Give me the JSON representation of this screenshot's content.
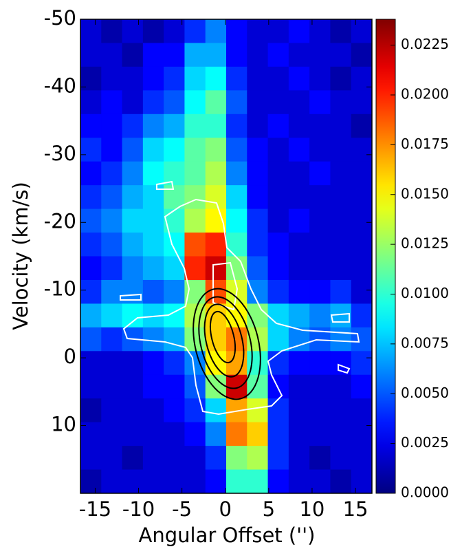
{
  "chart_data": {
    "type": "heatmap",
    "x_label": "Angular Offset ('')",
    "y_label": "Velocity (km/s)",
    "colormap": "jet",
    "xlim": [
      -16.7,
      16.9
    ],
    "ylim": [
      20,
      -50
    ],
    "xticks": [
      -15,
      -10,
      -5,
      0,
      5,
      10,
      15
    ],
    "yticks": [
      -50,
      -40,
      -30,
      -20,
      -10,
      0,
      10
    ],
    "clim": [
      0,
      0.0238
    ],
    "cticks": [
      {
        "value": 0,
        "label": "0.0000"
      },
      {
        "value": 0.0025,
        "label": "0.0025"
      },
      {
        "value": 0.005,
        "label": "0.0050"
      },
      {
        "value": 0.0075,
        "label": "0.0075"
      },
      {
        "value": 0.01,
        "label": "0.0100"
      },
      {
        "value": 0.0125,
        "label": "0.0125"
      },
      {
        "value": 0.015,
        "label": "0.0150"
      },
      {
        "value": 0.0175,
        "label": "0.0175"
      },
      {
        "value": 0.02,
        "label": "0.0200"
      },
      {
        "value": 0.0225,
        "label": "0.0225"
      }
    ],
    "x": [
      -15.5,
      -13.1,
      -10.7,
      -8.3,
      -5.9,
      -3.5,
      -1.1,
      1.3,
      3.7,
      6.1,
      8.5,
      10.9,
      13.3,
      15.7
    ],
    "y": [
      -48.25,
      -44.75,
      -41.25,
      -37.75,
      -34.25,
      -30.75,
      -27.25,
      -23.75,
      -20.25,
      -16.75,
      -13.25,
      -9.75,
      -6.25,
      -2.75,
      0.75,
      4.25,
      7.75,
      11.25,
      14.75,
      18.25
    ],
    "z": [
      [
        0.002,
        0.001,
        0.002,
        0.001,
        0.002,
        0.004,
        0.006,
        0.003,
        0.002,
        0.002,
        0.003,
        0.002,
        0.001,
        0.002
      ],
      [
        0.002,
        0.002,
        0.001,
        0.003,
        0.003,
        0.007,
        0.007,
        0.003,
        0.002,
        0.003,
        0.002,
        0.002,
        0.002,
        0.001
      ],
      [
        0.001,
        0.002,
        0.002,
        0.003,
        0.004,
        0.008,
        0.009,
        0.004,
        0.002,
        0.002,
        0.003,
        0.002,
        0.001,
        0.002
      ],
      [
        0.002,
        0.003,
        0.002,
        0.004,
        0.005,
        0.009,
        0.011,
        0.005,
        0.002,
        0.002,
        0.002,
        0.003,
        0.002,
        0.002
      ],
      [
        0.003,
        0.003,
        0.004,
        0.006,
        0.007,
        0.01,
        0.01,
        0.004,
        0.002,
        0.003,
        0.002,
        0.002,
        0.002,
        0.001
      ],
      [
        0.004,
        0.003,
        0.005,
        0.008,
        0.009,
        0.011,
        0.012,
        0.005,
        0.003,
        0.002,
        0.003,
        0.002,
        0.002,
        0.002
      ],
      [
        0.003,
        0.004,
        0.006,
        0.009,
        0.01,
        0.011,
        0.013,
        0.006,
        0.003,
        0.002,
        0.002,
        0.003,
        0.002,
        0.002
      ],
      [
        0.004,
        0.005,
        0.007,
        0.008,
        0.011,
        0.012,
        0.014,
        0.008,
        0.003,
        0.002,
        0.002,
        0.002,
        0.002,
        0.002
      ],
      [
        0.005,
        0.006,
        0.008,
        0.008,
        0.01,
        0.013,
        0.015,
        0.009,
        0.004,
        0.002,
        0.003,
        0.002,
        0.002,
        0.002
      ],
      [
        0.004,
        0.005,
        0.007,
        0.008,
        0.009,
        0.019,
        0.02,
        0.01,
        0.004,
        0.003,
        0.002,
        0.002,
        0.002,
        0.002
      ],
      [
        0.003,
        0.004,
        0.006,
        0.007,
        0.008,
        0.02,
        0.022,
        0.012,
        0.005,
        0.003,
        0.002,
        0.002,
        0.002,
        0.002
      ],
      [
        0.004,
        0.006,
        0.006,
        0.005,
        0.006,
        0.012,
        0.019,
        0.014,
        0.006,
        0.004,
        0.003,
        0.003,
        0.004,
        0.002
      ],
      [
        0.007,
        0.008,
        0.009,
        0.008,
        0.009,
        0.013,
        0.016,
        0.015,
        0.012,
        0.008,
        0.007,
        0.006,
        0.007,
        0.004
      ],
      [
        0.005,
        0.004,
        0.005,
        0.006,
        0.007,
        0.012,
        0.016,
        0.018,
        0.013,
        0.008,
        0.006,
        0.005,
        0.006,
        0.005
      ],
      [
        0.002,
        0.002,
        0.002,
        0.003,
        0.004,
        0.006,
        0.015,
        0.017,
        0.01,
        0.004,
        0.003,
        0.003,
        0.003,
        0.004
      ],
      [
        0.002,
        0.002,
        0.002,
        0.003,
        0.003,
        0.005,
        0.012,
        0.022,
        0.011,
        0.003,
        0.002,
        0.002,
        0.002,
        0.003
      ],
      [
        0.001,
        0.002,
        0.002,
        0.002,
        0.003,
        0.004,
        0.008,
        0.017,
        0.014,
        0.004,
        0.002,
        0.002,
        0.002,
        0.002
      ],
      [
        0.002,
        0.002,
        0.002,
        0.002,
        0.002,
        0.003,
        0.006,
        0.018,
        0.016,
        0.004,
        0.002,
        0.002,
        0.002,
        0.002
      ],
      [
        0.002,
        0.002,
        0.001,
        0.002,
        0.002,
        0.002,
        0.004,
        0.012,
        0.013,
        0.004,
        0.002,
        0.001,
        0.002,
        0.002
      ],
      [
        0.001,
        0.002,
        0.002,
        0.002,
        0.002,
        0.002,
        0.003,
        0.01,
        0.01,
        0.003,
        0.002,
        0.002,
        0.001,
        0.002
      ]
    ]
  }
}
